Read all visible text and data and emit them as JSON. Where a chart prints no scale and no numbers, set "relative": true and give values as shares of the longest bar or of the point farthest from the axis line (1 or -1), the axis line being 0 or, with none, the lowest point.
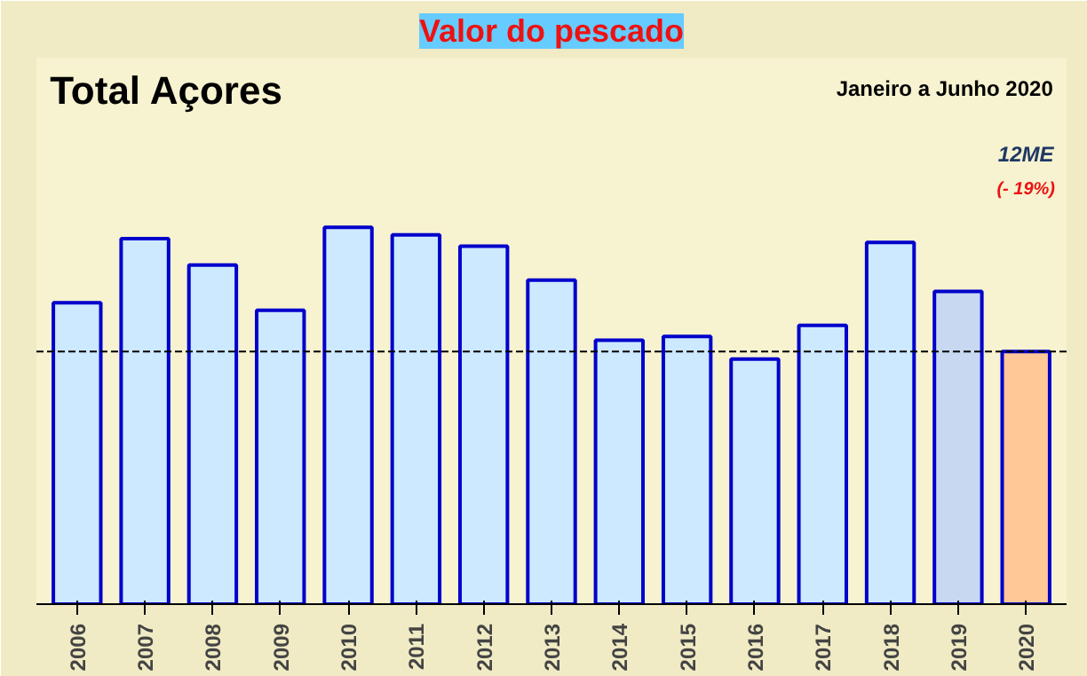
{
  "chart_data": {
    "type": "bar",
    "title": "Valor do pescado",
    "subtitle": "Total Açores",
    "annotations": [
      "Janeiro a Junho 2020",
      "12ME",
      "(- 19%)"
    ],
    "categories": [
      "2006",
      "2007",
      "2008",
      "2009",
      "2010",
      "2011",
      "2012",
      "2013",
      "2014",
      "2015",
      "2016",
      "2017",
      "2018",
      "2019",
      "2020"
    ],
    "values": [
      0.8,
      0.97,
      0.9,
      0.78,
      1,
      0.98,
      0.95,
      0.86,
      0.7,
      0.71,
      0.65,
      0.74,
      0.96,
      0.83,
      0.67
    ],
    "colors": [
      "#cce9ff",
      "#cce9ff",
      "#cce9ff",
      "#cce9ff",
      "#cce9ff",
      "#cce9ff",
      "#cce9ff",
      "#cce9ff",
      "#cce9ff",
      "#cce9ff",
      "#cce9ff",
      "#cce9ff",
      "#cce9ff",
      "#c8d8f0",
      "#ffc896"
    ],
    "relative": true,
    "grid": false,
    "ref_lines": [
      {
        "axis": "y",
        "value": 0.67,
        "label": null,
        "color": "#000000",
        "line_style": "dashed"
      }
    ]
  }
}
